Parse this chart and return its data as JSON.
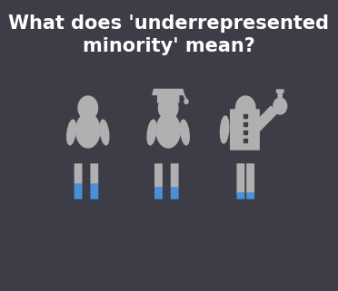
{
  "bg_color": "#3d3d47",
  "figure_color": "#b0b0b0",
  "blue_color": "#4a90d9",
  "text_color": "#ffffff",
  "title_line1": "What does 'underrepresented",
  "title_line2": "minority' mean?",
  "title_fontsize": 15,
  "figsize": [
    3.72,
    3.21
  ],
  "dpi": 100
}
